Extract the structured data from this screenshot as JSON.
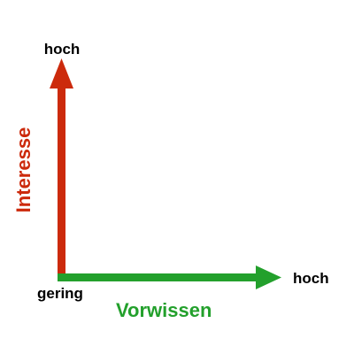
{
  "diagram": {
    "y_axis": {
      "title": "Interesse",
      "high_label": "hoch",
      "color": "#cc2a0c"
    },
    "x_axis": {
      "title": "Vorwissen",
      "high_label": "hoch",
      "color": "#23a02c"
    },
    "origin_label": "gering"
  }
}
